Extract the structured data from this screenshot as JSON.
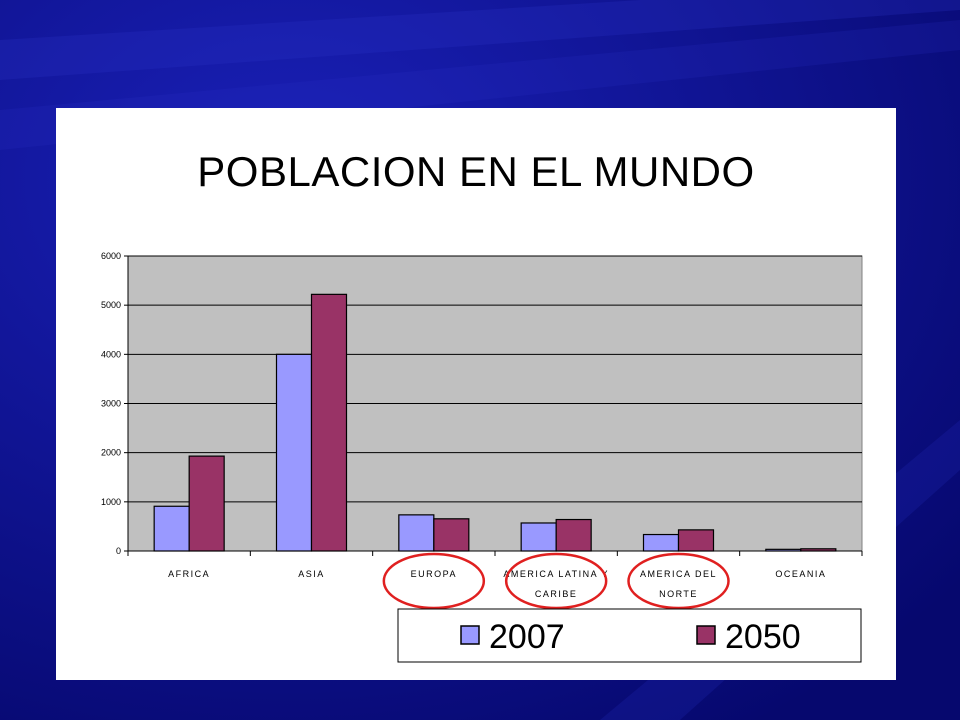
{
  "slide": {
    "title": "POBLACION EN EL MUNDO"
  },
  "colors": {
    "background": "#0a0c8a",
    "plot_area": "#c0c0c0",
    "series_2007": "#9999ff",
    "series_2050": "#993366",
    "highlight_circle": "#e02020"
  },
  "chart_data": {
    "type": "bar",
    "title": "POBLACION EN EL MUNDO",
    "categories": [
      [
        "AFRICA"
      ],
      [
        "ASIA"
      ],
      [
        "EUROPA"
      ],
      [
        "AMERICA LATINA Y",
        "CARIBE"
      ],
      [
        "AMERICA DEL",
        "NORTE"
      ],
      [
        "OCEANIA"
      ]
    ],
    "series": [
      {
        "name": "2007",
        "values": [
          910,
          4000,
          735,
          570,
          335,
          34
        ]
      },
      {
        "name": "2050",
        "values": [
          1930,
          5220,
          655,
          640,
          430,
          45
        ]
      }
    ],
    "y_ticks": [
      "0",
      "1000",
      "2000",
      "3000",
      "4000",
      "5000",
      "6000"
    ],
    "ylim": [
      0,
      6000
    ],
    "xlabel": "",
    "ylabel": "",
    "grid": true,
    "legend_position": "bottom-right",
    "highlighted_categories": [
      2,
      3,
      4
    ]
  }
}
